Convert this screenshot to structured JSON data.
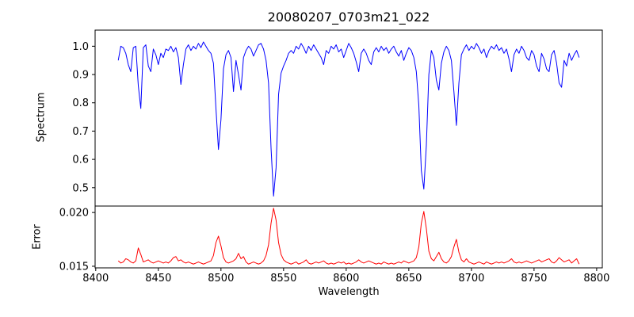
{
  "chart_data": {
    "type": "line",
    "title": "20080207_0703m21_022",
    "xlabel": "Wavelength",
    "grid": false,
    "legend": "none",
    "background": "#ffffff",
    "axis_color": "#000000",
    "text_color": "#000000",
    "x_start": 8418,
    "x_step": 2,
    "xlim": [
      8399.5,
      8804.5
    ],
    "xticks": {
      "values": [
        8400,
        8450,
        8500,
        8550,
        8600,
        8650,
        8700,
        8750,
        8800
      ],
      "labels": [
        "8400",
        "8450",
        "8500",
        "8550",
        "8600",
        "8650",
        "8700",
        "8750",
        "8800"
      ]
    },
    "panels": [
      {
        "name": "spectrum",
        "ylabel": "Spectrum",
        "color": "#0000ff",
        "ylim": [
          0.435,
          1.057
        ],
        "yticks": {
          "values": [
            1.0,
            0.9,
            0.8,
            0.7,
            0.6,
            0.5
          ],
          "labels": [
            "1.0",
            "0.9",
            "0.8",
            "0.7",
            "0.6",
            "0.5"
          ]
        },
        "values": [
          0.95,
          1.0,
          0.995,
          0.975,
          0.935,
          0.91,
          0.995,
          1.0,
          0.86,
          0.78,
          0.995,
          1.005,
          0.93,
          0.91,
          0.99,
          0.97,
          0.935,
          0.975,
          0.96,
          0.99,
          0.985,
          1.0,
          0.98,
          0.995,
          0.96,
          0.865,
          0.935,
          0.99,
          1.005,
          0.985,
          1.0,
          0.99,
          1.01,
          0.995,
          1.015,
          1.0,
          0.985,
          0.975,
          0.94,
          0.78,
          0.635,
          0.74,
          0.92,
          0.97,
          0.985,
          0.96,
          0.84,
          0.95,
          0.9,
          0.845,
          0.96,
          0.985,
          1.0,
          0.99,
          0.965,
          0.985,
          1.005,
          1.01,
          0.99,
          0.95,
          0.87,
          0.64,
          0.47,
          0.57,
          0.83,
          0.905,
          0.93,
          0.95,
          0.975,
          0.985,
          0.975,
          1.0,
          0.99,
          1.01,
          0.995,
          0.975,
          1.0,
          0.985,
          1.005,
          0.99,
          0.975,
          0.96,
          0.935,
          0.985,
          0.975,
          1.0,
          0.99,
          1.005,
          0.98,
          0.99,
          0.96,
          0.985,
          1.01,
          0.995,
          0.975,
          0.945,
          0.91,
          0.975,
          0.99,
          0.975,
          0.95,
          0.935,
          0.98,
          0.995,
          0.98,
          1.0,
          0.985,
          0.995,
          0.975,
          0.99,
          1.0,
          0.98,
          0.965,
          0.985,
          0.95,
          0.975,
          0.995,
          0.985,
          0.96,
          0.91,
          0.79,
          0.56,
          0.495,
          0.65,
          0.9,
          0.985,
          0.96,
          0.88,
          0.845,
          0.94,
          0.98,
          1.0,
          0.985,
          0.95,
          0.84,
          0.72,
          0.87,
          0.97,
          0.99,
          1.005,
          0.985,
          1.0,
          0.99,
          1.01,
          0.995,
          0.975,
          0.99,
          0.96,
          0.985,
          1.0,
          0.99,
          1.005,
          0.985,
          0.995,
          0.975,
          0.99,
          0.955,
          0.91,
          0.97,
          0.99,
          0.975,
          1.0,
          0.985,
          0.96,
          0.95,
          0.985,
          0.97,
          0.93,
          0.91,
          0.975,
          0.955,
          0.92,
          0.91,
          0.97,
          0.985,
          0.94,
          0.87,
          0.855,
          0.95,
          0.93,
          0.975,
          0.95,
          0.97,
          0.985,
          0.96
        ]
      },
      {
        "name": "error",
        "ylabel": "Error",
        "color": "#ff0000",
        "ylim": [
          0.01485,
          0.0206
        ],
        "yticks": {
          "values": [
            0.02,
            0.015
          ],
          "labels": [
            "0.020",
            "0.015"
          ]
        },
        "values": [
          0.0155,
          0.0153,
          0.0154,
          0.0157,
          0.0156,
          0.0154,
          0.0153,
          0.0155,
          0.0167,
          0.0161,
          0.0154,
          0.0155,
          0.0156,
          0.0154,
          0.0153,
          0.0154,
          0.0155,
          0.0154,
          0.0153,
          0.0154,
          0.0153,
          0.0155,
          0.0158,
          0.0159,
          0.0155,
          0.0156,
          0.0154,
          0.0153,
          0.0154,
          0.0153,
          0.0152,
          0.0153,
          0.0154,
          0.0153,
          0.0152,
          0.0153,
          0.0154,
          0.0155,
          0.016,
          0.0172,
          0.0178,
          0.0169,
          0.0158,
          0.0154,
          0.0153,
          0.0154,
          0.0155,
          0.0157,
          0.0162,
          0.0157,
          0.0159,
          0.0154,
          0.0152,
          0.0153,
          0.0154,
          0.0153,
          0.0152,
          0.0153,
          0.0155,
          0.016,
          0.017,
          0.019,
          0.0204,
          0.0193,
          0.0172,
          0.0161,
          0.0156,
          0.0154,
          0.0153,
          0.0152,
          0.0153,
          0.0154,
          0.0152,
          0.0153,
          0.0154,
          0.0156,
          0.0153,
          0.0152,
          0.0153,
          0.0154,
          0.0153,
          0.0154,
          0.0155,
          0.0153,
          0.0152,
          0.0153,
          0.0152,
          0.0153,
          0.0154,
          0.0153,
          0.0154,
          0.0152,
          0.0153,
          0.0152,
          0.0153,
          0.0154,
          0.0156,
          0.0154,
          0.0153,
          0.0154,
          0.0155,
          0.0154,
          0.0153,
          0.0152,
          0.0153,
          0.0152,
          0.0154,
          0.0153,
          0.0152,
          0.0153,
          0.0152,
          0.0153,
          0.0154,
          0.0153,
          0.0155,
          0.0154,
          0.0153,
          0.0154,
          0.0155,
          0.0158,
          0.0168,
          0.019,
          0.0201,
          0.0185,
          0.0164,
          0.0157,
          0.0155,
          0.0159,
          0.0163,
          0.0157,
          0.0154,
          0.0153,
          0.0155,
          0.0159,
          0.0168,
          0.0175,
          0.0163,
          0.0156,
          0.0154,
          0.0157,
          0.0154,
          0.0153,
          0.0152,
          0.0153,
          0.0154,
          0.0153,
          0.0152,
          0.0154,
          0.0153,
          0.0152,
          0.0153,
          0.0154,
          0.0153,
          0.0154,
          0.0153,
          0.0154,
          0.0155,
          0.0157,
          0.0154,
          0.0153,
          0.0154,
          0.0153,
          0.0154,
          0.0155,
          0.0154,
          0.0153,
          0.0154,
          0.0155,
          0.0156,
          0.0154,
          0.0155,
          0.0156,
          0.0157,
          0.0154,
          0.0153,
          0.0155,
          0.0158,
          0.0156,
          0.0154,
          0.0155,
          0.0156,
          0.0153,
          0.0155,
          0.0157,
          0.0152
        ]
      }
    ]
  }
}
